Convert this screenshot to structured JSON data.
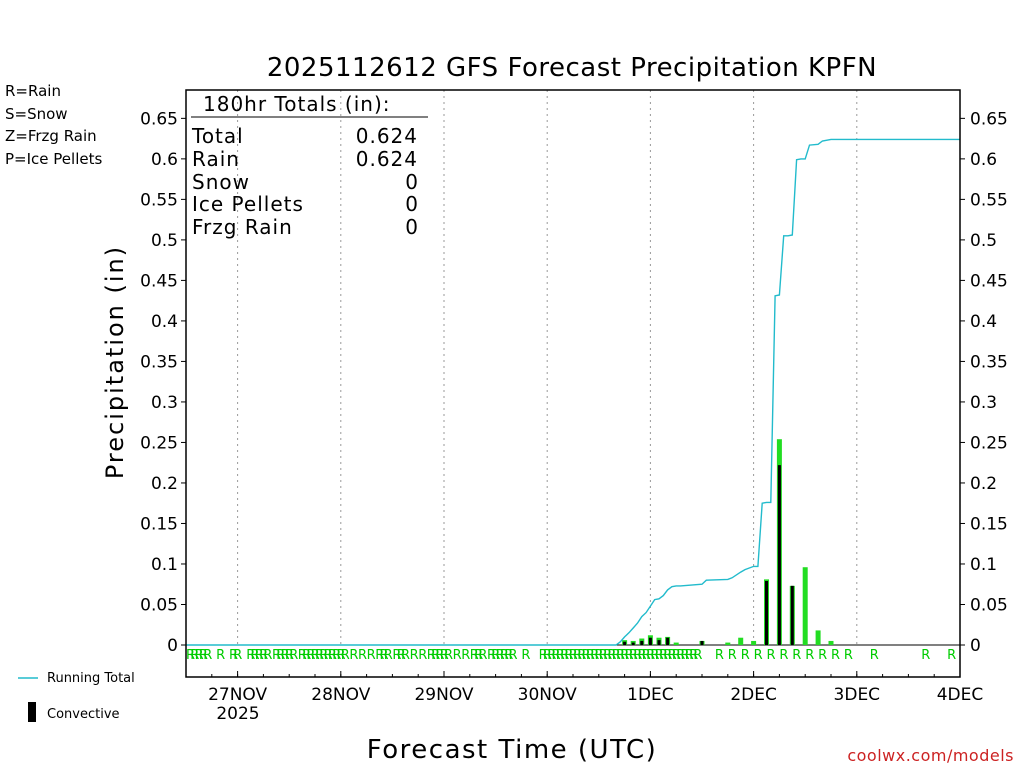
{
  "chart_data": {
    "type": "bar",
    "title": "2025112612 GFS Forecast Precipitation KPFN",
    "xlabel": "Forecast Time (UTC)",
    "ylabel": "Precipitation (in)",
    "ylim": [
      0,
      0.685
    ],
    "yticks": [
      0,
      0.05,
      0.1,
      0.15,
      0.2,
      0.25,
      0.3,
      0.35,
      0.4,
      0.45,
      0.5,
      0.55,
      0.6,
      0.65
    ],
    "ytick_labels": [
      "0",
      "0.05",
      "0.1",
      "0.15",
      "0.2",
      "0.25",
      "0.3",
      "0.35",
      "0.4",
      "0.45",
      "0.5",
      "0.55",
      "0.6",
      "0.65"
    ],
    "xlim_hours": [
      0,
      180
    ],
    "xticks": [
      {
        "hour": 12,
        "label": "27NOV"
      },
      {
        "hour": 36,
        "label": "28NOV"
      },
      {
        "hour": 60,
        "label": "29NOV"
      },
      {
        "hour": 84,
        "label": "30NOV"
      },
      {
        "hour": 108,
        "label": "1DEC"
      },
      {
        "hour": 132,
        "label": "2DEC"
      },
      {
        "hour": 156,
        "label": "3DEC"
      },
      {
        "hour": 180,
        "label": "4DEC"
      }
    ],
    "year_label": "2025",
    "totals": {
      "header": "180hr Totals (in):",
      "rows": [
        {
          "label": "Total",
          "value": "0.624"
        },
        {
          "label": "Rain",
          "value": "0.624"
        },
        {
          "label": "Snow",
          "value": "0"
        },
        {
          "label": "Ice Pellets",
          "value": "0"
        },
        {
          "label": "Frzg Rain",
          "value": "0"
        }
      ]
    },
    "legend_types": [
      {
        "text": "R=Rain",
        "color": "#00cc00"
      },
      {
        "text": "S=Snow",
        "color": "#3355ff"
      },
      {
        "text": "Z=Frzg Rain",
        "color": "#ff9933"
      },
      {
        "text": "P=Ice Pellets",
        "color": "#ff2299"
      }
    ],
    "legend_series": {
      "running_total": "Running Total",
      "convective": "Convective"
    },
    "series": [
      {
        "name": "Precipitation",
        "color": "#22dd22",
        "hours": [
          102,
          104,
          106,
          108,
          110,
          112,
          114,
          120,
          126,
          129,
          132,
          135,
          138,
          141,
          144,
          147,
          150,
          153
        ],
        "values": [
          0.006,
          0.005,
          0.008,
          0.012,
          0.009,
          0.01,
          0.003,
          0.005,
          0.003,
          0.009,
          0.005,
          0.081,
          0.254,
          0.073,
          0.096,
          0.018,
          0.005,
          0.0
        ]
      },
      {
        "name": "Convective",
        "color": "#000000",
        "hours": [
          102,
          104,
          106,
          108,
          110,
          112,
          120,
          135,
          138,
          141
        ],
        "values": [
          0.004,
          0.003,
          0.005,
          0.009,
          0.006,
          0.009,
          0.005,
          0.079,
          0.222,
          0.073
        ]
      },
      {
        "name": "Running Total",
        "color": "#22bbcc",
        "hours": [
          0,
          100,
          101,
          102,
          103,
          104,
          105,
          106,
          107,
          108,
          109,
          110,
          111,
          112,
          113,
          114,
          115,
          120,
          121,
          126,
          127,
          129,
          130,
          132,
          133,
          134,
          135,
          136,
          137,
          138,
          139,
          140,
          141,
          142,
          143,
          144,
          145,
          147,
          148,
          150,
          180
        ],
        "values": [
          0,
          0,
          0.004,
          0.01,
          0.015,
          0.021,
          0.027,
          0.035,
          0.04,
          0.048,
          0.056,
          0.057,
          0.061,
          0.068,
          0.072,
          0.073,
          0.073,
          0.075,
          0.08,
          0.081,
          0.083,
          0.09,
          0.093,
          0.097,
          0.097,
          0.175,
          0.176,
          0.176,
          0.431,
          0.432,
          0.505,
          0.505,
          0.506,
          0.599,
          0.6,
          0.6,
          0.617,
          0.618,
          0.622,
          0.624,
          0.624
        ]
      }
    ],
    "ptype_markers": {
      "letter": "R",
      "hours": [
        0,
        1,
        2,
        3,
        4,
        7,
        10,
        11,
        14,
        15,
        16,
        17,
        18,
        20,
        21,
        22,
        23,
        24,
        26,
        27,
        28,
        29,
        30,
        31,
        32,
        33,
        34,
        35,
        36,
        38,
        40,
        42,
        44,
        45,
        46,
        48,
        49,
        50,
        52,
        54,
        56,
        57,
        58,
        59,
        60,
        62,
        64,
        66,
        67,
        68,
        70,
        71,
        72,
        73,
        74,
        75,
        78,
        82,
        83,
        84,
        85,
        86,
        87,
        88,
        89,
        90,
        91,
        92,
        93,
        94,
        95,
        96,
        97,
        98,
        99,
        100,
        101,
        102,
        103,
        104,
        105,
        106,
        107,
        108,
        109,
        110,
        111,
        112,
        113,
        114,
        115,
        116,
        117,
        118,
        123,
        126,
        129,
        132,
        135,
        138,
        141,
        144,
        147,
        150,
        153,
        159,
        171,
        177
      ]
    }
  },
  "footer": {
    "credit": "coolwx.com/models"
  }
}
